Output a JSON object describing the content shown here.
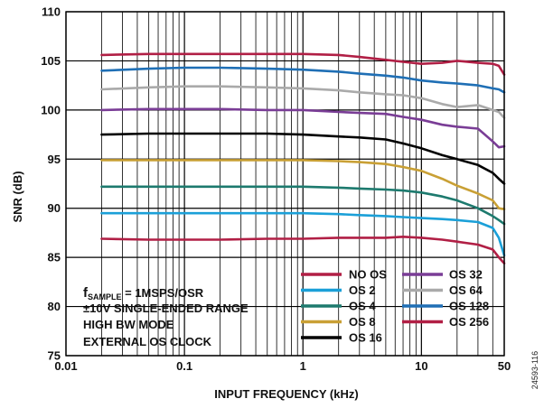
{
  "chart_data": {
    "type": "line",
    "xlabel": "INPUT FREQUENCY (kHz)",
    "ylabel": "SNR (dB)",
    "x_scale": "log",
    "xlim": [
      0.01,
      50
    ],
    "ylim": [
      75,
      110
    ],
    "x_ticks": [
      {
        "value": 0.01,
        "label": "0.01"
      },
      {
        "value": 0.1,
        "label": "0.1"
      },
      {
        "value": 1,
        "label": "1"
      },
      {
        "value": 10,
        "label": "10"
      },
      {
        "value": 50,
        "label": "50"
      }
    ],
    "y_ticks": [
      75,
      80,
      85,
      90,
      95,
      100,
      105,
      110
    ],
    "grid": true,
    "legend_position": "bottom-right",
    "annotation_lines": [
      {
        "main": "f",
        "sub": "SAMPLE",
        "rest": " = 1MSPS/OSR"
      },
      {
        "main": "±10V SINGLE-ENDED RANGE"
      },
      {
        "main": "HIGH BW MODE"
      },
      {
        "main": "EXTERNAL OS CLOCK"
      }
    ],
    "figure_id": "24593-116",
    "series": [
      {
        "name": "NO OS",
        "color": "#b11f45",
        "x": [
          0.02,
          0.05,
          0.1,
          0.2,
          0.5,
          1,
          2,
          3,
          5,
          7,
          10,
          15,
          20,
          30,
          40,
          45,
          50
        ],
        "y": [
          86.9,
          86.8,
          86.8,
          86.8,
          86.9,
          86.9,
          87.0,
          87.0,
          87.0,
          87.1,
          87.0,
          86.8,
          86.6,
          86.3,
          85.8,
          85.0,
          84.4
        ]
      },
      {
        "name": "OS 2",
        "color": "#1ba0d8",
        "x": [
          0.02,
          0.05,
          0.1,
          0.2,
          0.5,
          1,
          2,
          3,
          5,
          7,
          10,
          15,
          20,
          30,
          40,
          45,
          50
        ],
        "y": [
          89.5,
          89.5,
          89.5,
          89.5,
          89.5,
          89.5,
          89.4,
          89.3,
          89.2,
          89.1,
          89.0,
          88.9,
          88.8,
          88.6,
          88.0,
          87.0,
          85.2
        ]
      },
      {
        "name": "OS 4",
        "color": "#1d7a6e",
        "x": [
          0.02,
          0.05,
          0.1,
          0.2,
          0.5,
          1,
          2,
          3,
          5,
          7,
          10,
          15,
          20,
          30,
          40,
          45,
          50
        ],
        "y": [
          92.2,
          92.2,
          92.2,
          92.2,
          92.2,
          92.2,
          92.1,
          92.0,
          91.9,
          91.8,
          91.6,
          91.2,
          90.8,
          90.0,
          89.2,
          88.8,
          88.4
        ]
      },
      {
        "name": "OS 8",
        "color": "#c9a035",
        "x": [
          0.02,
          0.05,
          0.1,
          0.2,
          0.5,
          1,
          2,
          3,
          5,
          7,
          10,
          15,
          20,
          30,
          40,
          45,
          50
        ],
        "y": [
          94.9,
          94.9,
          94.9,
          94.9,
          94.9,
          94.9,
          94.8,
          94.7,
          94.5,
          94.2,
          93.8,
          93.0,
          92.3,
          91.5,
          90.8,
          90.0,
          89.9
        ]
      },
      {
        "name": "OS 16",
        "color": "#000000",
        "x": [
          0.02,
          0.05,
          0.1,
          0.2,
          0.5,
          1,
          2,
          3,
          5,
          7,
          10,
          15,
          20,
          30,
          40,
          45,
          50
        ],
        "y": [
          97.5,
          97.6,
          97.6,
          97.6,
          97.6,
          97.5,
          97.3,
          97.2,
          97.0,
          96.6,
          96.1,
          95.4,
          95.0,
          94.4,
          93.6,
          93.0,
          92.5
        ]
      },
      {
        "name": "OS 32",
        "color": "#7a3d96",
        "x": [
          0.02,
          0.05,
          0.1,
          0.2,
          0.5,
          1,
          2,
          3,
          5,
          7,
          10,
          15,
          20,
          30,
          40,
          45,
          50
        ],
        "y": [
          100.0,
          100.1,
          100.1,
          100.1,
          100.0,
          100.0,
          99.8,
          99.7,
          99.6,
          99.3,
          99.0,
          98.5,
          98.3,
          98.1,
          96.8,
          96.2,
          96.3
        ]
      },
      {
        "name": "OS 64",
        "color": "#aaaaaa",
        "x": [
          0.02,
          0.05,
          0.1,
          0.2,
          0.5,
          1,
          2,
          3,
          5,
          7,
          10,
          15,
          20,
          30,
          40,
          45,
          50
        ],
        "y": [
          102.1,
          102.3,
          102.4,
          102.4,
          102.3,
          102.2,
          102.0,
          101.8,
          101.6,
          101.5,
          101.2,
          100.6,
          100.3,
          100.5,
          100.0,
          99.8,
          99.2
        ]
      },
      {
        "name": "OS 128",
        "color": "#1f6fb5",
        "x": [
          0.02,
          0.05,
          0.1,
          0.2,
          0.5,
          1,
          2,
          3,
          5,
          7,
          10,
          15,
          20,
          30,
          40,
          45,
          50
        ],
        "y": [
          104.0,
          104.2,
          104.3,
          104.3,
          104.2,
          104.1,
          103.9,
          103.7,
          103.5,
          103.3,
          103.0,
          102.8,
          102.7,
          102.5,
          102.2,
          102.1,
          101.8
        ]
      },
      {
        "name": "OS 256",
        "color": "#b11f45",
        "x": [
          0.02,
          0.05,
          0.1,
          0.2,
          0.5,
          1,
          2,
          3,
          5,
          7,
          10,
          15,
          20,
          30,
          40,
          45,
          50
        ],
        "y": [
          105.6,
          105.7,
          105.7,
          105.7,
          105.7,
          105.7,
          105.6,
          105.4,
          105.1,
          104.9,
          104.7,
          104.8,
          105.0,
          104.8,
          104.7,
          104.5,
          103.6
        ]
      }
    ]
  }
}
